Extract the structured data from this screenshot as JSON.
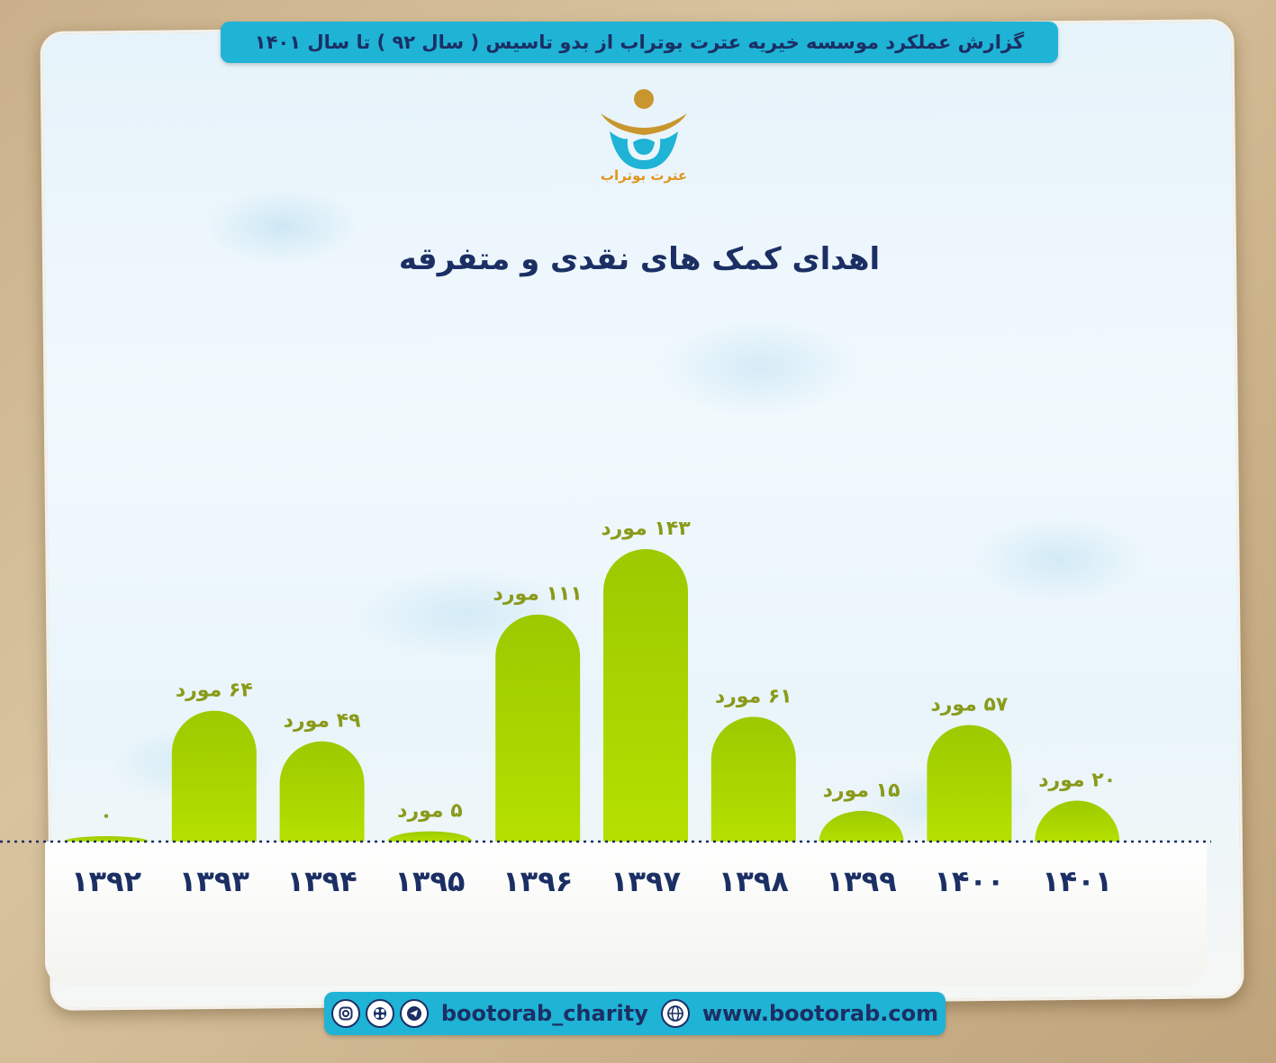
{
  "banner": "گزارش عملکرد موسسه خیریه عترت بوتراب از بدو تاسیس ( سال ۹۲ ) تا سال ۱۴۰۱",
  "logo": {
    "text": "عترت بوتراب",
    "colors": {
      "teal": "#1fb3d6",
      "gold": "#c9962e"
    }
  },
  "colors": {
    "bar": "#b5e000",
    "bar_dark": "#9cc900",
    "banner": "#1fb3d6",
    "navy": "#1b2f64",
    "axis": "#1b2f64"
  },
  "chart_data": {
    "type": "bar",
    "title": "اهدای کمک های نقدی و متفرقه",
    "categories": [
      "۱۳۹۲",
      "۱۳۹۳",
      "۱۳۹۴",
      "۱۳۹۵",
      "۱۳۹۶",
      "۱۳۹۷",
      "۱۳۹۸",
      "۱۳۹۹",
      "۱۴۰۰",
      "۱۴۰۱"
    ],
    "values": [
      0,
      64,
      49,
      5,
      111,
      143,
      61,
      15,
      57,
      20
    ],
    "labels": [
      "۰",
      "۶۴ مورد",
      "۴۹ مورد",
      "۵ مورد",
      "۱۱۱ مورد",
      "۱۴۳ مورد",
      "۶۱ مورد",
      "۱۵ مورد",
      "۵۷ مورد",
      "۲۰ مورد"
    ],
    "ylim": [
      0,
      143
    ],
    "grid": false,
    "legend": "none"
  },
  "footer": {
    "handle": "bootorab_charity",
    "website": "www.bootorab.com",
    "icons": [
      "instagram-icon",
      "aparat-icon",
      "telegram-icon",
      "globe-icon"
    ]
  }
}
